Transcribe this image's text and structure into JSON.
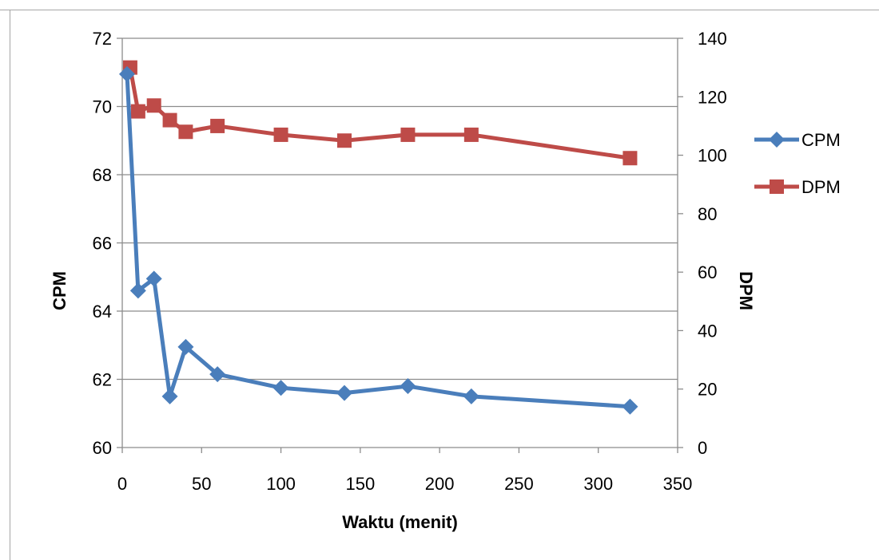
{
  "chart_data": {
    "type": "line",
    "title": "",
    "xlabel": "Waktu (menit)",
    "ylabel_left": "CPM",
    "ylabel_right": "DPM",
    "xlim": [
      0,
      350
    ],
    "ylim_left": [
      60,
      72
    ],
    "ylim_right": [
      0,
      140
    ],
    "x_ticks": [
      "0",
      "50",
      "100",
      "150",
      "200",
      "250",
      "300",
      "350"
    ],
    "y_left_ticks": [
      "60",
      "62",
      "64",
      "66",
      "68",
      "70",
      "72"
    ],
    "y_right_ticks": [
      "0",
      "20",
      "40",
      "60",
      "80",
      "100",
      "120",
      "140"
    ],
    "grid": true,
    "legend_position": "right",
    "series": [
      {
        "name": "CPM",
        "axis": "left",
        "color": "#4a7ebb",
        "marker": "diamond",
        "x": [
          3,
          10,
          20,
          30,
          40,
          60,
          100,
          140,
          180,
          220,
          320
        ],
        "values": [
          70.95,
          64.6,
          64.95,
          61.5,
          62.95,
          62.15,
          61.75,
          61.6,
          61.8,
          61.5,
          61.2
        ]
      },
      {
        "name": "DPM",
        "axis": "right",
        "color": "#be4b48",
        "marker": "square",
        "x": [
          5,
          10,
          20,
          30,
          40,
          60,
          100,
          140,
          180,
          220,
          320
        ],
        "values": [
          130,
          115,
          117,
          112,
          108,
          110,
          107,
          105,
          107,
          107,
          99
        ]
      }
    ]
  }
}
